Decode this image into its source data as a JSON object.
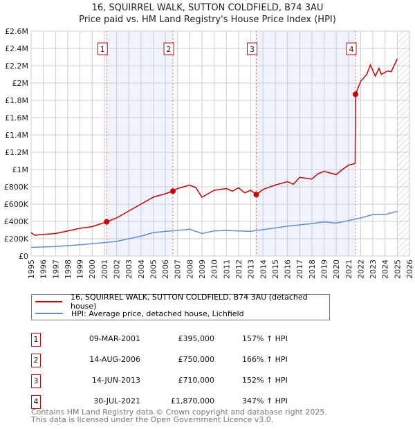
{
  "header": {
    "title": "16, SQUIRREL WALK, SUTTON COLDFIELD, B74 3AU",
    "subtitle": "Price paid vs. HM Land Registry's House Price Index (HPI)"
  },
  "chart_data": {
    "type": "line",
    "xlim": [
      1995,
      2026
    ],
    "ylim": [
      0,
      2600000
    ],
    "yticks": [
      {
        "v": 0,
        "label": "£0"
      },
      {
        "v": 200000,
        "label": "£200K"
      },
      {
        "v": 400000,
        "label": "£400K"
      },
      {
        "v": 600000,
        "label": "£600K"
      },
      {
        "v": 800000,
        "label": "£800K"
      },
      {
        "v": 1000000,
        "label": "£1M"
      },
      {
        "v": 1200000,
        "label": "£1.2M"
      },
      {
        "v": 1400000,
        "label": "£1.4M"
      },
      {
        "v": 1600000,
        "label": "£1.6M"
      },
      {
        "v": 1800000,
        "label": "£1.8M"
      },
      {
        "v": 2000000,
        "label": "£2M"
      },
      {
        "v": 2200000,
        "label": "£2.2M"
      },
      {
        "v": 2400000,
        "label": "£2.4M"
      },
      {
        "v": 2600000,
        "label": "£2.6M"
      }
    ],
    "xticks": [
      "1995",
      "1996",
      "1997",
      "1998",
      "1999",
      "2000",
      "2001",
      "2002",
      "2003",
      "2004",
      "2005",
      "2006",
      "2007",
      "2008",
      "2009",
      "2010",
      "2011",
      "2012",
      "2013",
      "2014",
      "2015",
      "2016",
      "2017",
      "2018",
      "2019",
      "2020",
      "2021",
      "2022",
      "2023",
      "2024",
      "2025",
      "2026"
    ],
    "series": [
      {
        "name": "16, SQUIRREL WALK, SUTTON COLDFIELD, B74 3AU (detached house)",
        "color": "#cc0000",
        "x": [
          1995,
          1995.3,
          1996,
          1997,
          1998,
          1999,
          2000,
          2001.19,
          2002,
          2003,
          2004,
          2005,
          2006,
          2006.62,
          2007,
          2008,
          2008.5,
          2009,
          2010,
          2011,
          2011.5,
          2012,
          2012.5,
          2013,
          2013.45,
          2014,
          2015,
          2016,
          2016.5,
          2017,
          2018,
          2018.5,
          2019,
          2020,
          2020.5,
          2021,
          2021.55,
          2021.58,
          2022,
          2022.5,
          2022.8,
          2023.2,
          2023.5,
          2023.7,
          2024.2,
          2024.5,
          2025
        ],
        "y": [
          270000,
          240000,
          250000,
          260000,
          290000,
          320000,
          340000,
          395000,
          440000,
          520000,
          600000,
          680000,
          720000,
          750000,
          780000,
          820000,
          790000,
          680000,
          760000,
          780000,
          750000,
          790000,
          730000,
          760000,
          710000,
          770000,
          820000,
          860000,
          830000,
          910000,
          890000,
          950000,
          980000,
          940000,
          1000000,
          1050000,
          1070000,
          1870000,
          2020000,
          2100000,
          2210000,
          2080000,
          2170000,
          2100000,
          2140000,
          2130000,
          2280000
        ]
      },
      {
        "name": "HPI: Average price, detached house, Lichfield",
        "color": "#5b8fd6",
        "x": [
          1995,
          1997,
          1999,
          2001,
          2002,
          2003,
          2004,
          2005,
          2006,
          2007,
          2008,
          2009,
          2010,
          2011,
          2012,
          2013,
          2014,
          2015,
          2016,
          2017,
          2018,
          2019,
          2020,
          2021,
          2022,
          2023,
          2024,
          2025
        ],
        "y": [
          100000,
          110000,
          130000,
          155000,
          170000,
          200000,
          230000,
          270000,
          285000,
          295000,
          310000,
          260000,
          290000,
          295000,
          290000,
          285000,
          305000,
          325000,
          345000,
          360000,
          375000,
          395000,
          380000,
          410000,
          440000,
          480000,
          480000,
          515000
        ]
      }
    ],
    "sales": [
      {
        "n": "1",
        "x": 2001.19,
        "y": 395000,
        "date": "09-MAR-2001",
        "price": "£395,000",
        "hpi": "157% ↑ HPI"
      },
      {
        "n": "2",
        "x": 2006.62,
        "y": 750000,
        "date": "14-AUG-2006",
        "price": "£750,000",
        "hpi": "166% ↑ HPI"
      },
      {
        "n": "3",
        "x": 2013.45,
        "y": 710000,
        "date": "14-JUN-2013",
        "price": "£710,000",
        "hpi": "152% ↑ HPI"
      },
      {
        "n": "4",
        "x": 2021.58,
        "y": 1870000,
        "date": "30-JUL-2021",
        "price": "£1,870,000",
        "hpi": "347% ↑ HPI"
      }
    ],
    "shaded": [
      [
        2001.19,
        2006.62
      ],
      [
        2013.45,
        2021.58
      ]
    ],
    "future_from": 2025
  },
  "footer": {
    "line1": "Contains HM Land Registry data © Crown copyright and database right 2025.",
    "line2": "This data is licensed under the Open Government Licence v3.0."
  }
}
